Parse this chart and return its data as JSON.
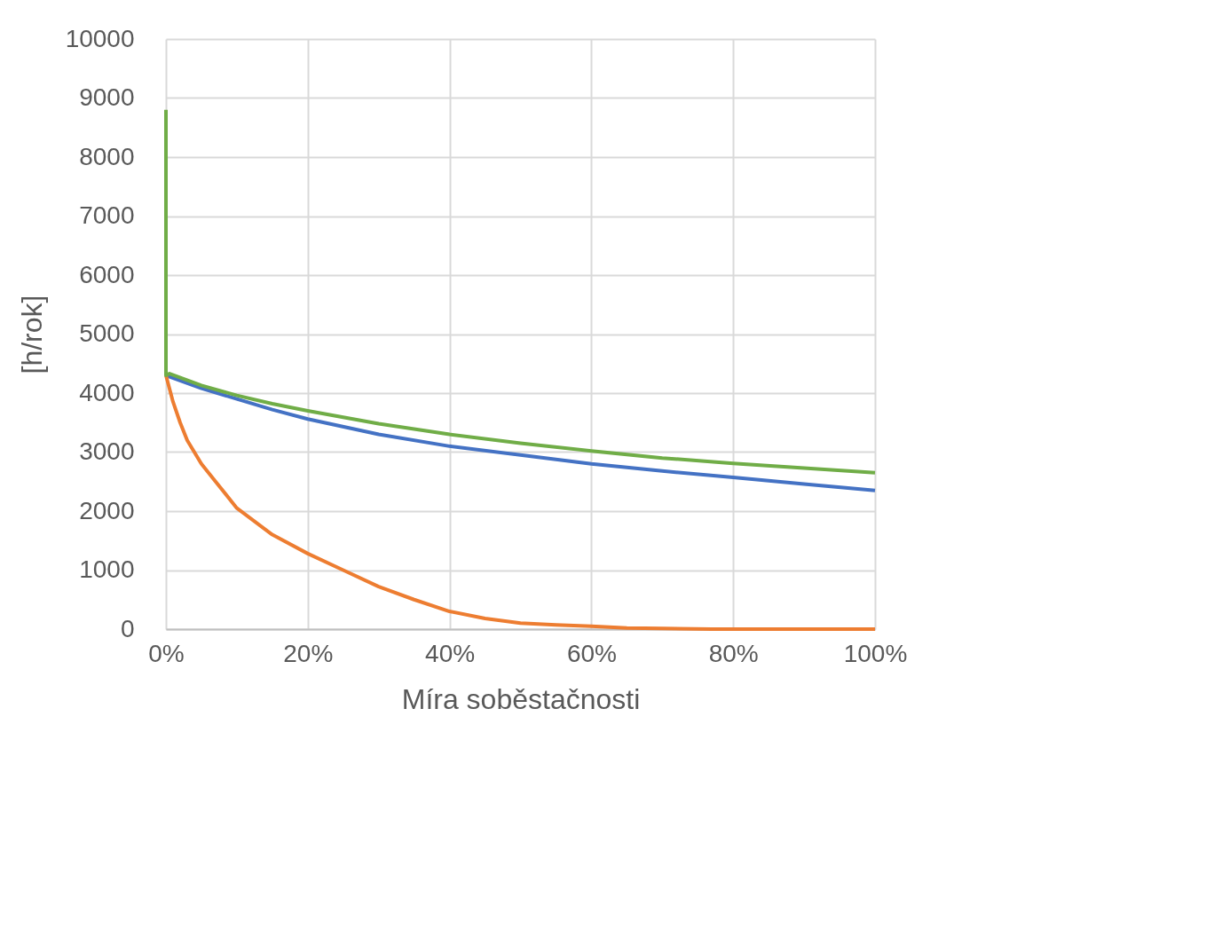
{
  "chart_data": {
    "type": "line",
    "xlabel": "Míra soběstačnosti",
    "ylabel": "[h/rok]",
    "xlim": [
      0,
      100
    ],
    "xticks": [
      {
        "value": 0,
        "label": "0%"
      },
      {
        "value": 20,
        "label": "20%"
      },
      {
        "value": 40,
        "label": "40%"
      },
      {
        "value": 60,
        "label": "60%"
      },
      {
        "value": 80,
        "label": "80%"
      },
      {
        "value": 100,
        "label": "100%"
      }
    ],
    "ylim": [
      0,
      10000
    ],
    "yticks": [
      0,
      1000,
      2000,
      3000,
      4000,
      5000,
      6000,
      7000,
      8000,
      9000,
      10000
    ],
    "grid": true,
    "series": [
      {
        "color": "#4472c4",
        "x": [
          0,
          5,
          10,
          15,
          20,
          30,
          40,
          50,
          60,
          70,
          80,
          90,
          100
        ],
        "values": [
          4300,
          4080,
          3900,
          3720,
          3560,
          3300,
          3100,
          2950,
          2800,
          2680,
          2570,
          2460,
          2350
        ]
      },
      {
        "color": "#ed7d31",
        "x": [
          0,
          1,
          2,
          3,
          5,
          7,
          10,
          15,
          20,
          25,
          30,
          35,
          40,
          45,
          50,
          55,
          60,
          65,
          70,
          77,
          85,
          100
        ],
        "values": [
          4300,
          3850,
          3500,
          3200,
          2800,
          2500,
          2050,
          1600,
          1280,
          1000,
          720,
          500,
          300,
          180,
          100,
          70,
          50,
          20,
          10,
          0,
          0,
          0
        ]
      },
      {
        "color": "#70ad47",
        "x": [
          0,
          0,
          0.5,
          5,
          10,
          15,
          20,
          30,
          40,
          50,
          60,
          70,
          80,
          90,
          100
        ],
        "values": [
          8800,
          4300,
          4330,
          4130,
          3960,
          3820,
          3700,
          3480,
          3300,
          3150,
          3020,
          2900,
          2810,
          2730,
          2650
        ]
      }
    ]
  }
}
